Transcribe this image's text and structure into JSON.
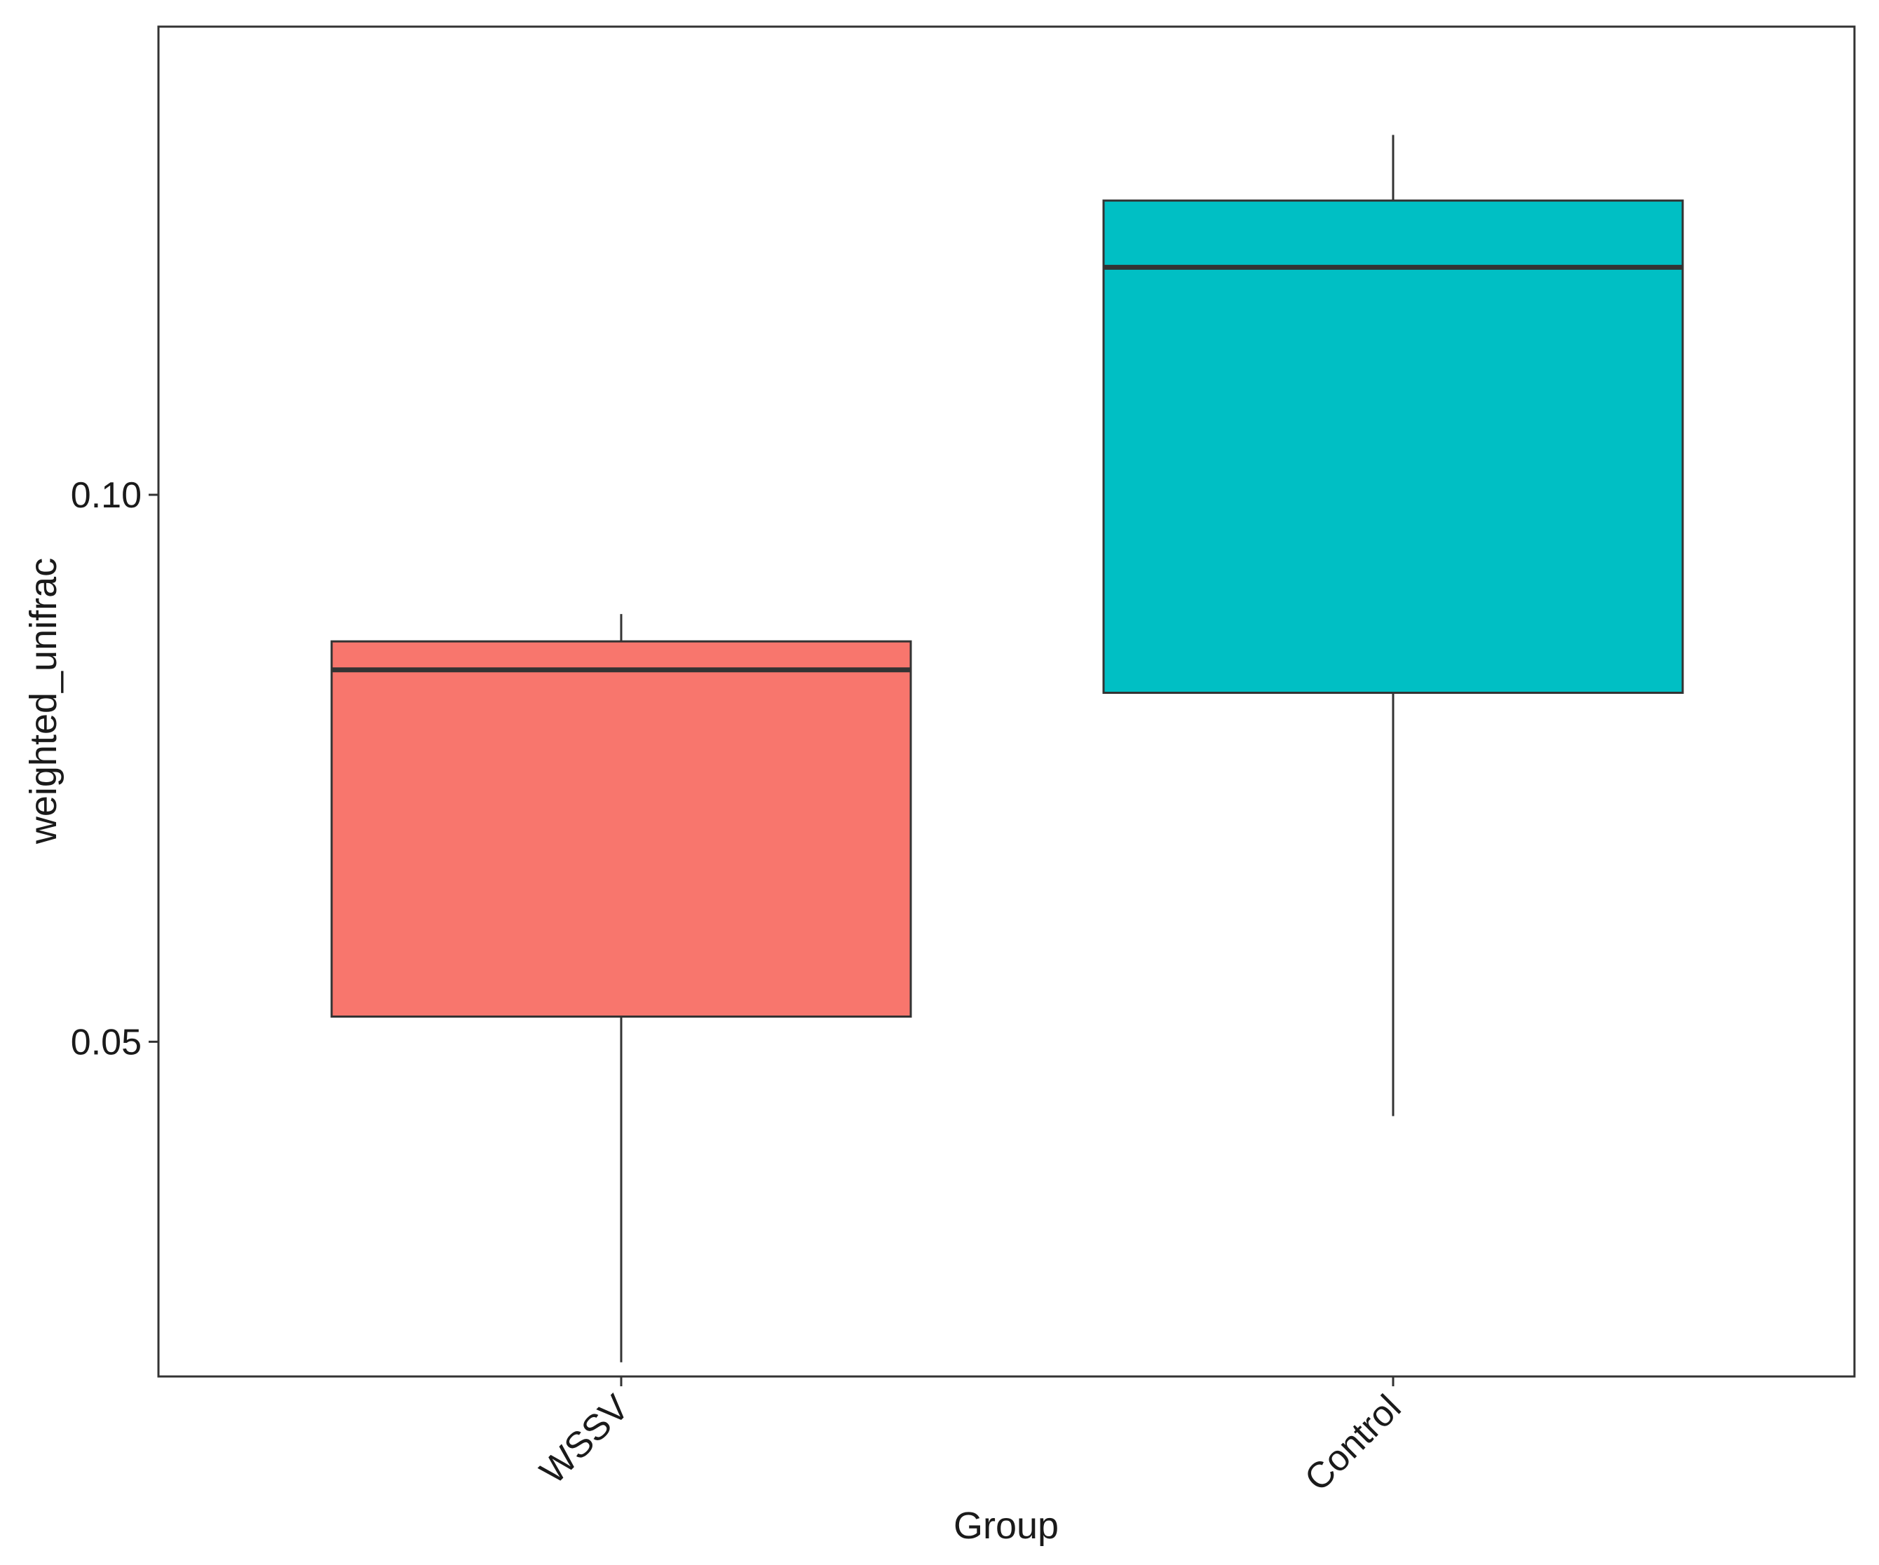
{
  "chart_data": {
    "type": "boxplot",
    "title": "",
    "xlabel": "Group",
    "ylabel": "weighted_unifrac",
    "ylim": [
      0.0194,
      0.1428
    ],
    "y_ticks": [
      {
        "value": 0.05,
        "label": "0.05"
      },
      {
        "value": 0.1,
        "label": "0.10"
      }
    ],
    "categories": [
      "WSSV",
      "Control"
    ],
    "boxes": [
      {
        "group": "WSSV",
        "whisker_low": 0.0207,
        "q1": 0.0523,
        "median": 0.084,
        "q3": 0.0866,
        "whisker_high": 0.0891,
        "color": "#F8766D"
      },
      {
        "group": "Control",
        "whisker_low": 0.0432,
        "q1": 0.0819,
        "median": 0.1208,
        "q3": 0.1269,
        "whisker_high": 0.1329,
        "color": "#00BFC4"
      }
    ],
    "grid": false,
    "legend": "none"
  }
}
